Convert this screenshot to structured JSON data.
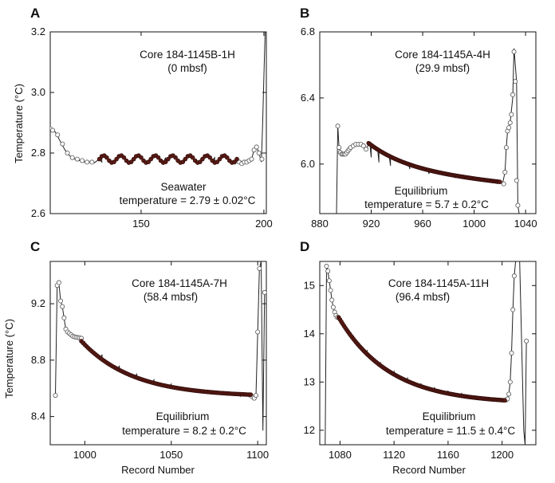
{
  "chart_data": [
    {
      "type": "line",
      "panel": "A",
      "annotation_title": [
        "Core 184-1145B-1H",
        "(0 mbsf)"
      ],
      "annotation_result": [
        "Seawater",
        "temperature = 2.79 ± 0.02°C"
      ],
      "ylabel": "Temperature (°C)",
      "xlabel": "",
      "xlim": [
        113,
        201
      ],
      "ylim": [
        2.6,
        3.2
      ],
      "xticks": [
        150,
        200
      ],
      "yticks": [
        2.6,
        2.8,
        3.0,
        3.2
      ],
      "tick_format": "x1",
      "trace": [
        [
          113,
          2.88
        ],
        [
          115,
          2.87
        ],
        [
          117,
          2.84
        ],
        [
          119,
          2.81
        ],
        [
          121,
          2.79
        ],
        [
          123,
          2.78
        ],
        [
          125,
          2.775
        ],
        [
          127,
          2.77
        ],
        [
          129,
          2.77
        ],
        [
          131,
          2.768
        ],
        [
          134,
          2.77
        ],
        [
          137,
          2.77
        ],
        [
          140,
          2.775
        ],
        [
          150,
          2.785
        ],
        [
          160,
          2.785
        ],
        [
          170,
          2.785
        ],
        [
          180,
          2.785
        ],
        [
          186,
          2.775
        ],
        [
          190,
          2.77
        ],
        [
          193,
          2.77
        ],
        [
          195,
          2.78
        ],
        [
          196,
          2.81
        ],
        [
          197,
          2.82
        ],
        [
          198,
          2.8
        ],
        [
          199,
          2.77
        ],
        [
          199.5,
          2.9
        ],
        [
          200,
          3.05
        ],
        [
          200.5,
          3.2
        ]
      ],
      "open_points": [
        [
          113,
          2.88
        ],
        [
          114,
          2.875
        ],
        [
          116,
          2.86
        ],
        [
          118,
          2.83
        ],
        [
          120,
          2.8
        ],
        [
          122,
          2.785
        ],
        [
          124,
          2.78
        ],
        [
          126,
          2.775
        ],
        [
          128,
          2.77
        ],
        [
          130,
          2.77
        ],
        [
          188,
          2.77
        ],
        [
          190,
          2.77
        ],
        [
          191,
          2.765
        ],
        [
          192,
          2.77
        ],
        [
          193,
          2.77
        ],
        [
          194,
          2.775
        ],
        [
          195,
          2.78
        ],
        [
          196,
          2.81
        ],
        [
          197,
          2.82
        ],
        [
          198,
          2.8
        ],
        [
          199.2,
          2.78
        ]
      ],
      "equilibrium": {
        "x_start": 133,
        "x_end": 189,
        "step": 1,
        "mean": 2.78,
        "amp": 0.012,
        "period": 7,
        "trend_end": 0
      }
    },
    {
      "type": "line",
      "panel": "B",
      "annotation_title": [
        "Core 184-1145A-4H",
        "(29.9 mbsf)"
      ],
      "annotation_result": [
        "Equilibrium",
        "temperature = 5.7 ± 0.2°C"
      ],
      "ylabel": "",
      "xlabel": "",
      "xlim": [
        880,
        1048
      ],
      "ylim": [
        5.7,
        6.8
      ],
      "xticks": [
        880,
        920,
        960,
        1000,
        1040
      ],
      "yticks": [
        6.0,
        6.4,
        6.8
      ],
      "tick_format": "x1",
      "trace": [
        [
          893,
          5.7
        ],
        [
          894,
          6.23
        ],
        [
          895,
          6.1
        ],
        [
          897,
          6.06
        ],
        [
          900,
          6.06
        ],
        [
          904,
          6.09
        ],
        [
          908,
          6.12
        ],
        [
          912,
          6.12
        ],
        [
          916,
          6.08
        ],
        [
          920,
          6.04
        ],
        [
          926,
          6.01
        ],
        [
          935,
          5.99
        ],
        [
          950,
          5.97
        ],
        [
          965,
          5.94
        ],
        [
          985,
          5.92
        ],
        [
          1005,
          5.9
        ],
        [
          1018,
          5.88
        ],
        [
          1022,
          5.88
        ],
        [
          1024,
          5.95
        ],
        [
          1025,
          6.1
        ],
        [
          1026,
          6.2
        ],
        [
          1028,
          6.25
        ],
        [
          1030,
          6.4
        ],
        [
          1031,
          6.7
        ],
        [
          1033,
          6.5
        ],
        [
          1034,
          5.75
        ],
        [
          1035,
          5.7
        ]
      ],
      "open_points": [
        [
          894,
          6.23
        ],
        [
          895,
          6.1
        ],
        [
          896,
          6.07
        ],
        [
          897,
          6.06
        ],
        [
          898,
          6.06
        ],
        [
          899,
          6.06
        ],
        [
          900,
          6.06
        ],
        [
          901,
          6.07
        ],
        [
          902,
          6.08
        ],
        [
          903,
          6.09
        ],
        [
          904,
          6.1
        ],
        [
          906,
          6.11
        ],
        [
          908,
          6.12
        ],
        [
          910,
          6.12
        ],
        [
          912,
          6.12
        ],
        [
          914,
          6.11
        ],
        [
          916,
          6.09
        ],
        [
          1023,
          5.88
        ],
        [
          1024,
          5.95
        ],
        [
          1025,
          6.1
        ],
        [
          1026,
          6.2
        ],
        [
          1027,
          6.22
        ],
        [
          1028,
          6.25
        ],
        [
          1029,
          6.3
        ],
        [
          1030,
          6.42
        ],
        [
          1031,
          6.68
        ],
        [
          1032,
          6.5
        ],
        [
          1033,
          5.9
        ],
        [
          1034,
          5.75
        ]
      ],
      "equilibrium": {
        "x_start": 918,
        "x_end": 1020,
        "step": 1,
        "mean": 5.96,
        "amp": 0.004,
        "period": 6,
        "trend_end": 1
      }
    },
    {
      "type": "line",
      "panel": "C",
      "annotation_title": [
        "Core 184-1145A-7H",
        "(58.4 mbsf)"
      ],
      "annotation_result": [
        "Equilibrium",
        "temperature = 8.2 ± 0.2°C"
      ],
      "ylabel": "Temperature (°C)",
      "xlabel": "Record Number",
      "xlim": [
        980,
        1105
      ],
      "ylim": [
        8.2,
        9.5
      ],
      "xticks": [
        1000,
        1050,
        1100
      ],
      "yticks": [
        8.4,
        8.8,
        9.2
      ],
      "tick_format": "x1",
      "trace": [
        [
          983,
          8.55
        ],
        [
          984,
          9.33
        ],
        [
          985,
          9.35
        ],
        [
          986,
          9.22
        ],
        [
          987,
          9.18
        ],
        [
          988,
          9.1
        ],
        [
          989,
          9.02
        ],
        [
          990,
          9.0
        ],
        [
          991,
          8.99
        ],
        [
          992,
          8.98
        ],
        [
          993,
          8.97
        ],
        [
          994,
          8.965
        ],
        [
          996,
          8.96
        ],
        [
          998,
          8.955
        ],
        [
          1000,
          8.93
        ],
        [
          1010,
          8.84
        ],
        [
          1020,
          8.76
        ],
        [
          1030,
          8.7
        ],
        [
          1040,
          8.66
        ],
        [
          1050,
          8.63
        ],
        [
          1060,
          8.6
        ],
        [
          1070,
          8.58
        ],
        [
          1080,
          8.56
        ],
        [
          1090,
          8.545
        ],
        [
          1095,
          8.54
        ],
        [
          1097,
          8.54
        ],
        [
          1098,
          8.52
        ],
        [
          1099,
          8.55
        ],
        [
          1100,
          9.0
        ],
        [
          1101,
          9.45
        ],
        [
          1102,
          9.5
        ],
        [
          1103,
          8.3
        ],
        [
          1104,
          9.28
        ]
      ],
      "open_points": [
        [
          983,
          8.55
        ],
        [
          984,
          9.33
        ],
        [
          985,
          9.35
        ],
        [
          986,
          9.22
        ],
        [
          987,
          9.18
        ],
        [
          988,
          9.1
        ],
        [
          989,
          9.02
        ],
        [
          990,
          9.0
        ],
        [
          991,
          8.99
        ],
        [
          992,
          8.98
        ],
        [
          993,
          8.97
        ],
        [
          994,
          8.965
        ],
        [
          995,
          8.962
        ],
        [
          996,
          8.96
        ],
        [
          997,
          8.958
        ],
        [
          998,
          8.955
        ],
        [
          1097,
          8.54
        ],
        [
          1098,
          8.53
        ],
        [
          1099,
          8.55
        ],
        [
          1100,
          9.0
        ],
        [
          1101,
          9.45
        ],
        [
          1104,
          9.28
        ]
      ],
      "equilibrium": {
        "x_start": 998,
        "x_end": 1096,
        "step": 1,
        "mean": 0,
        "amp": 0,
        "period": 1,
        "trend_end": 2
      }
    },
    {
      "type": "line",
      "panel": "D",
      "annotation_title": [
        "Core 184-1145A-11H",
        "(96.4 mbsf)"
      ],
      "annotation_result": [
        "Equilibrium",
        "temperature = 11.5 ± 0.4°C"
      ],
      "ylabel": "",
      "xlabel": "Record Number",
      "xlim": [
        1065,
        1225
      ],
      "ylim": [
        11.7,
        15.5
      ],
      "xticks": [
        1080,
        1120,
        1160,
        1200
      ],
      "yticks": [
        12,
        13,
        14,
        15
      ],
      "tick_format": "x1",
      "trace": [
        [
          1069,
          11.7
        ],
        [
          1070,
          15.4
        ],
        [
          1071,
          15.3
        ],
        [
          1072,
          15.1
        ],
        [
          1073,
          14.9
        ],
        [
          1074,
          14.7
        ],
        [
          1075,
          14.55
        ],
        [
          1076,
          14.45
        ],
        [
          1077,
          14.38
        ],
        [
          1078,
          14.34
        ],
        [
          1080,
          14.3
        ],
        [
          1090,
          13.95
        ],
        [
          1100,
          13.65
        ],
        [
          1110,
          13.4
        ],
        [
          1120,
          13.22
        ],
        [
          1130,
          13.08
        ],
        [
          1140,
          12.97
        ],
        [
          1150,
          12.89
        ],
        [
          1160,
          12.82
        ],
        [
          1170,
          12.76
        ],
        [
          1180,
          12.71
        ],
        [
          1190,
          12.66
        ],
        [
          1200,
          12.62
        ],
        [
          1202,
          12.62
        ],
        [
          1204,
          12.65
        ],
        [
          1205,
          12.75
        ],
        [
          1206,
          13.0
        ],
        [
          1207,
          13.6
        ],
        [
          1208,
          14.5
        ],
        [
          1209,
          15.2
        ],
        [
          1210,
          15.5
        ],
        [
          1213,
          15.5
        ],
        [
          1216,
          12.0
        ],
        [
          1217,
          11.7
        ],
        [
          1218,
          13.8
        ]
      ],
      "open_points": [
        [
          1070,
          15.4
        ],
        [
          1071,
          15.3
        ],
        [
          1072,
          15.1
        ],
        [
          1073,
          14.9
        ],
        [
          1074,
          14.7
        ],
        [
          1075,
          14.55
        ],
        [
          1076,
          14.45
        ],
        [
          1077,
          14.38
        ],
        [
          1078,
          14.34
        ],
        [
          1203,
          12.63
        ],
        [
          1204,
          12.65
        ],
        [
          1205,
          12.75
        ],
        [
          1206,
          13.0
        ],
        [
          1207,
          13.6
        ],
        [
          1208,
          14.5
        ],
        [
          1209,
          15.2
        ],
        [
          1218,
          13.85
        ]
      ],
      "equilibrium": {
        "x_start": 1079,
        "x_end": 1202,
        "step": 1,
        "mean": 0,
        "amp": 0,
        "period": 1,
        "trend_end": 3
      }
    }
  ]
}
